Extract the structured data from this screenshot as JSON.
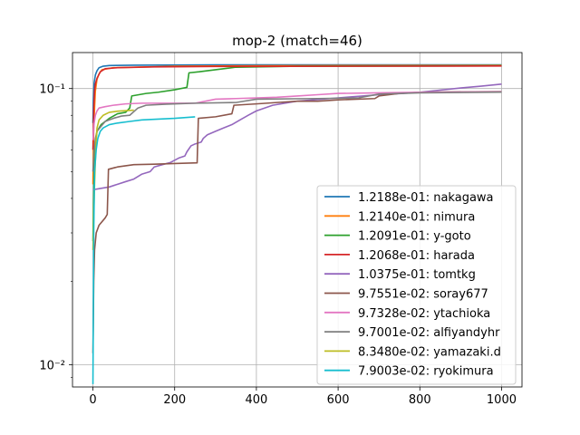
{
  "chart_data": {
    "type": "line",
    "title": "mop-2 (match=46)",
    "xlabel": "",
    "ylabel": "",
    "yscale": "log",
    "xlim": [
      -50,
      1050
    ],
    "ylim": [
      0.0083,
      0.135
    ],
    "xticks": [
      0,
      200,
      400,
      600,
      800,
      1000
    ],
    "xtick_labels": [
      "0",
      "200",
      "400",
      "600",
      "800",
      "1000"
    ],
    "yticks": [
      0.01,
      0.1
    ],
    "ytick_labels": [
      "10⁻²",
      "10⁻¹"
    ],
    "grid": true,
    "legend_position": "lower-right",
    "series": [
      {
        "name": "1.2188e-01: nakagawa",
        "color": "#1f77b4",
        "points": [
          [
            0,
            0.075
          ],
          [
            1,
            0.09
          ],
          [
            3,
            0.105
          ],
          [
            6,
            0.112
          ],
          [
            10,
            0.116
          ],
          [
            15,
            0.119
          ],
          [
            25,
            0.1205
          ],
          [
            40,
            0.1212
          ],
          [
            100,
            0.1215
          ],
          [
            300,
            0.1218
          ],
          [
            1000,
            0.12188
          ]
        ]
      },
      {
        "name": "1.2140e-01: nimura",
        "color": "#ff7f0e",
        "points": [
          [
            0,
            0.045
          ],
          [
            1,
            0.06
          ],
          [
            2,
            0.072
          ],
          [
            4,
            0.085
          ],
          [
            6,
            0.098
          ],
          [
            10,
            0.108
          ],
          [
            15,
            0.113
          ],
          [
            22,
            0.117
          ],
          [
            50,
            0.119
          ],
          [
            200,
            0.1205
          ],
          [
            400,
            0.121
          ],
          [
            1000,
            0.1214
          ]
        ]
      },
      {
        "name": "1.2091e-01: y-goto",
        "color": "#2ca02c",
        "points": [
          [
            0,
            0.028
          ],
          [
            3,
            0.05
          ],
          [
            6,
            0.063
          ],
          [
            10,
            0.07
          ],
          [
            20,
            0.074
          ],
          [
            40,
            0.078
          ],
          [
            60,
            0.081
          ],
          [
            80,
            0.082
          ],
          [
            90,
            0.085
          ],
          [
            95,
            0.094
          ],
          [
            130,
            0.096
          ],
          [
            160,
            0.097
          ],
          [
            200,
            0.099
          ],
          [
            230,
            0.101
          ],
          [
            235,
            0.114
          ],
          [
            260,
            0.115
          ],
          [
            300,
            0.117
          ],
          [
            350,
            0.1195
          ],
          [
            500,
            0.1205
          ],
          [
            1000,
            0.12091
          ]
        ]
      },
      {
        "name": "1.2068e-01: harada",
        "color": "#d62728",
        "points": [
          [
            0,
            0.06
          ],
          [
            1,
            0.07
          ],
          [
            2,
            0.085
          ],
          [
            4,
            0.098
          ],
          [
            6,
            0.104
          ],
          [
            10,
            0.109
          ],
          [
            14,
            0.112
          ],
          [
            18,
            0.115
          ],
          [
            30,
            0.118
          ],
          [
            60,
            0.119
          ],
          [
            150,
            0.1198
          ],
          [
            300,
            0.1202
          ],
          [
            1000,
            0.12068
          ]
        ]
      },
      {
        "name": "1.0375e-01: tomtkg",
        "color": "#9467bd",
        "points": [
          [
            0,
            0.043
          ],
          [
            20,
            0.0435
          ],
          [
            40,
            0.044
          ],
          [
            60,
            0.045
          ],
          [
            80,
            0.046
          ],
          [
            100,
            0.047
          ],
          [
            110,
            0.048
          ],
          [
            120,
            0.049
          ],
          [
            140,
            0.05
          ],
          [
            150,
            0.052
          ],
          [
            170,
            0.053
          ],
          [
            190,
            0.054
          ],
          [
            200,
            0.055
          ],
          [
            210,
            0.056
          ],
          [
            225,
            0.057
          ],
          [
            230,
            0.059
          ],
          [
            240,
            0.062
          ],
          [
            250,
            0.063
          ],
          [
            265,
            0.064
          ],
          [
            270,
            0.066
          ],
          [
            280,
            0.068
          ],
          [
            300,
            0.07
          ],
          [
            320,
            0.072
          ],
          [
            340,
            0.074
          ],
          [
            360,
            0.077
          ],
          [
            380,
            0.08
          ],
          [
            400,
            0.083
          ],
          [
            420,
            0.085
          ],
          [
            440,
            0.087
          ],
          [
            460,
            0.088
          ],
          [
            480,
            0.089
          ],
          [
            500,
            0.09
          ],
          [
            540,
            0.091
          ],
          [
            580,
            0.092
          ],
          [
            620,
            0.093
          ],
          [
            660,
            0.094
          ],
          [
            700,
            0.095
          ],
          [
            760,
            0.096
          ],
          [
            800,
            0.097
          ],
          [
            830,
            0.098
          ],
          [
            900,
            0.1005
          ],
          [
            950,
            0.102
          ],
          [
            1000,
            0.10375
          ]
        ]
      },
      {
        "name": "9.7551e-02: soray677",
        "color": "#8c564b",
        "points": [
          [
            0,
            0.011
          ],
          [
            2,
            0.02
          ],
          [
            4,
            0.026
          ],
          [
            8,
            0.03
          ],
          [
            15,
            0.032
          ],
          [
            30,
            0.034
          ],
          [
            35,
            0.035
          ],
          [
            38,
            0.051
          ],
          [
            60,
            0.052
          ],
          [
            80,
            0.0525
          ],
          [
            100,
            0.053
          ],
          [
            150,
            0.0532
          ],
          [
            200,
            0.0535
          ],
          [
            255,
            0.0538
          ],
          [
            258,
            0.078
          ],
          [
            300,
            0.079
          ],
          [
            340,
            0.081
          ],
          [
            345,
            0.087
          ],
          [
            400,
            0.088
          ],
          [
            450,
            0.089
          ],
          [
            500,
            0.09
          ],
          [
            550,
            0.09
          ],
          [
            600,
            0.091
          ],
          [
            690,
            0.092
          ],
          [
            700,
            0.094
          ],
          [
            750,
            0.096
          ],
          [
            800,
            0.097
          ],
          [
            1000,
            0.097551
          ]
        ]
      },
      {
        "name": "9.7328e-02: ytachioka",
        "color": "#e377c2",
        "points": [
          [
            0,
            0.065
          ],
          [
            3,
            0.075
          ],
          [
            6,
            0.08
          ],
          [
            10,
            0.083
          ],
          [
            15,
            0.085
          ],
          [
            30,
            0.086
          ],
          [
            50,
            0.087
          ],
          [
            80,
            0.088
          ],
          [
            120,
            0.0885
          ],
          [
            250,
            0.0885
          ],
          [
            300,
            0.0915
          ],
          [
            350,
            0.092
          ],
          [
            400,
            0.0925
          ],
          [
            450,
            0.093
          ],
          [
            500,
            0.094
          ],
          [
            550,
            0.095
          ],
          [
            600,
            0.096
          ],
          [
            700,
            0.0965
          ],
          [
            800,
            0.097
          ],
          [
            1000,
            0.097328
          ]
        ]
      },
      {
        "name": "9.7001e-02: alfiyandyhr",
        "color": "#7f7f7f",
        "points": [
          [
            0,
            0.05
          ],
          [
            3,
            0.06
          ],
          [
            6,
            0.066
          ],
          [
            10,
            0.07
          ],
          [
            20,
            0.073
          ],
          [
            30,
            0.076
          ],
          [
            50,
            0.078
          ],
          [
            70,
            0.0795
          ],
          [
            90,
            0.08
          ],
          [
            110,
            0.085
          ],
          [
            130,
            0.087
          ],
          [
            180,
            0.0878
          ],
          [
            250,
            0.0885
          ],
          [
            350,
            0.089
          ],
          [
            400,
            0.0915
          ],
          [
            550,
            0.092
          ],
          [
            650,
            0.0925
          ],
          [
            700,
            0.0955
          ],
          [
            800,
            0.0965
          ],
          [
            1000,
            0.097001
          ]
        ]
      },
      {
        "name": "8.3480e-02: yamazaki.d",
        "color": "#bcbd22",
        "points": [
          [
            0,
            0.026
          ],
          [
            2,
            0.035
          ],
          [
            4,
            0.045
          ],
          [
            6,
            0.055
          ],
          [
            8,
            0.065
          ],
          [
            10,
            0.072
          ],
          [
            15,
            0.077
          ],
          [
            25,
            0.08
          ],
          [
            40,
            0.082
          ],
          [
            60,
            0.0828
          ],
          [
            100,
            0.08348
          ]
        ]
      },
      {
        "name": "7.9003e-02: ryokimura",
        "color": "#17becf",
        "points": [
          [
            0,
            0.0085
          ],
          [
            2,
            0.03
          ],
          [
            4,
            0.05
          ],
          [
            8,
            0.06
          ],
          [
            12,
            0.066
          ],
          [
            18,
            0.07
          ],
          [
            25,
            0.072
          ],
          [
            40,
            0.074
          ],
          [
            60,
            0.075
          ],
          [
            90,
            0.076
          ],
          [
            120,
            0.077
          ],
          [
            160,
            0.0775
          ],
          [
            200,
            0.078
          ],
          [
            250,
            0.079003
          ]
        ]
      }
    ]
  }
}
